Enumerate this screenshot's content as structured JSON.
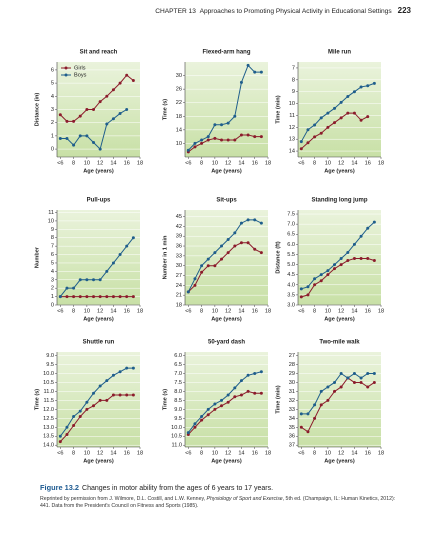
{
  "header": {
    "chapter": "CHAPTER 13",
    "title": "Approaches to Promoting Physical Activity in Educational Settings",
    "page": "223"
  },
  "chart_data": [
    {
      "type": "line",
      "title": "Sit and reach",
      "xlabel": "Age (years)",
      "ylabel": "Distance (in)",
      "legend": "upper left",
      "grid": true,
      "x": [
        6,
        7,
        8,
        9,
        10,
        11,
        12,
        13,
        14,
        15,
        16,
        17
      ],
      "xlim": [
        5.5,
        18
      ],
      "xticks": [
        {
          "value": 6,
          "label": "<6"
        },
        8,
        10,
        12,
        14,
        16,
        18
      ],
      "ylim": [
        -0.6,
        6.6
      ],
      "yticks": [
        0,
        1,
        2,
        3,
        4,
        5,
        6
      ],
      "series": [
        {
          "name": "Girls",
          "color": "#8c1c2c",
          "values": [
            2.6,
            2.1,
            2.1,
            2.5,
            3.0,
            3.0,
            3.6,
            4.0,
            4.5,
            5.0,
            5.6,
            5.2
          ]
        },
        {
          "name": "Boys",
          "color": "#1f5e8c",
          "values": [
            0.8,
            0.8,
            0.3,
            1.0,
            1.0,
            0.5,
            0.0,
            1.9,
            2.3,
            2.7,
            3.0,
            null
          ]
        }
      ]
    },
    {
      "type": "line",
      "title": "Flexed-arm hang",
      "xlabel": "Age (years)",
      "ylabel": "Time (s)",
      "grid": true,
      "x": [
        6,
        7,
        8,
        9,
        10,
        11,
        12,
        13,
        14,
        15,
        16,
        17
      ],
      "xlim": [
        5.5,
        18
      ],
      "xticks": [
        {
          "value": 6,
          "label": "<6"
        },
        8,
        10,
        12,
        14,
        16,
        18
      ],
      "ylim": [
        6,
        34
      ],
      "yticks": [
        10,
        14,
        18,
        22,
        26,
        30
      ],
      "series": [
        {
          "color": "#8c1c2c",
          "values": [
            7.5,
            9,
            10,
            11,
            11.5,
            11,
            11,
            11,
            12.5,
            12.5,
            12,
            12
          ]
        },
        {
          "color": "#1f5e8c",
          "values": [
            8,
            10,
            11,
            12,
            15.5,
            15.5,
            16,
            18,
            28,
            33,
            31,
            31
          ]
        }
      ]
    },
    {
      "type": "line",
      "title": "Mile run",
      "xlabel": "Age (years)",
      "ylabel": "Time (min)",
      "grid": true,
      "x": [
        6,
        7,
        8,
        9,
        10,
        11,
        12,
        13,
        14,
        15,
        16,
        17
      ],
      "xlim": [
        5.5,
        18
      ],
      "xticks": [
        {
          "value": 6,
          "label": "<6"
        },
        8,
        10,
        12,
        14,
        16,
        18
      ],
      "ylim": [
        14.5,
        6.5
      ],
      "yticks": [
        7,
        8,
        9,
        10,
        11,
        12,
        13,
        14
      ],
      "series": [
        {
          "color": "#8c1c2c",
          "values": [
            13.8,
            13.3,
            12.8,
            12.5,
            12.0,
            11.6,
            11.2,
            10.8,
            10.8,
            11.4,
            11.1,
            null
          ]
        },
        {
          "color": "#1f5e8c",
          "values": [
            13.2,
            12.2,
            11.8,
            11.2,
            10.8,
            10.4,
            9.9,
            9.4,
            9.0,
            8.6,
            8.5,
            8.3
          ]
        }
      ]
    },
    {
      "type": "line",
      "title": "Pull-ups",
      "xlabel": "Age (years)",
      "ylabel": "Number",
      "grid": true,
      "x": [
        6,
        7,
        8,
        9,
        10,
        11,
        12,
        13,
        14,
        15,
        16,
        17
      ],
      "xlim": [
        5.5,
        18
      ],
      "xticks": [
        {
          "value": 6,
          "label": "<6"
        },
        8,
        10,
        12,
        14,
        16,
        18
      ],
      "ylim": [
        0,
        11.3
      ],
      "yticks": [
        0,
        1,
        2,
        3,
        4,
        5,
        6,
        7,
        8,
        9,
        10,
        11
      ],
      "series": [
        {
          "color": "#8c1c2c",
          "values": [
            1,
            1,
            1,
            1,
            1,
            1,
            1,
            1,
            1,
            1,
            1,
            1
          ]
        },
        {
          "color": "#1f5e8c",
          "values": [
            1,
            2,
            2,
            3,
            3,
            3,
            3,
            4,
            5,
            6,
            7,
            8
          ]
        }
      ]
    },
    {
      "type": "line",
      "title": "Sit-ups",
      "xlabel": "Age (years)",
      "ylabel": "Number in 1 min",
      "grid": true,
      "x": [
        6,
        7,
        8,
        9,
        10,
        11,
        12,
        13,
        14,
        15,
        16,
        17
      ],
      "xlim": [
        5.5,
        18
      ],
      "xticks": [
        {
          "value": 6,
          "label": "<6"
        },
        8,
        10,
        12,
        14,
        16,
        18
      ],
      "ylim": [
        18,
        47
      ],
      "yticks": [
        18,
        21,
        24,
        27,
        30,
        33,
        36,
        39,
        42,
        45
      ],
      "series": [
        {
          "color": "#8c1c2c",
          "values": [
            22,
            24,
            28,
            30,
            30,
            32,
            34,
            36,
            37,
            37,
            35,
            34
          ]
        },
        {
          "color": "#1f5e8c",
          "values": [
            22,
            26,
            30,
            32,
            34,
            36,
            38,
            40,
            43,
            44,
            44,
            43
          ]
        }
      ]
    },
    {
      "type": "line",
      "title": "Standing long jump",
      "xlabel": "Age (years)",
      "ylabel": "Distance (ft)",
      "grid": true,
      "x": [
        6,
        7,
        8,
        9,
        10,
        11,
        12,
        13,
        14,
        15,
        16,
        17
      ],
      "xlim": [
        5.5,
        18
      ],
      "xticks": [
        {
          "value": 6,
          "label": "<6"
        },
        8,
        10,
        12,
        14,
        16,
        18
      ],
      "ylim": [
        3.0,
        7.7
      ],
      "yticks": [
        {
          "value": 3,
          "label": "3.0"
        },
        3.5,
        {
          "value": 4,
          "label": "4.0"
        },
        4.5,
        {
          "value": 5,
          "label": "5.0"
        },
        5.5,
        {
          "value": 6,
          "label": "6.0"
        },
        6.5,
        {
          "value": 7,
          "label": "7.0"
        },
        7.5
      ],
      "series": [
        {
          "color": "#8c1c2c",
          "values": [
            3.4,
            3.5,
            4.0,
            4.2,
            4.5,
            4.8,
            5.0,
            5.2,
            5.3,
            5.3,
            5.3,
            5.2
          ]
        },
        {
          "color": "#1f5e8c",
          "values": [
            3.8,
            3.9,
            4.3,
            4.5,
            4.7,
            5.0,
            5.3,
            5.6,
            6.0,
            6.4,
            6.8,
            7.1
          ]
        }
      ]
    },
    {
      "type": "line",
      "title": "Shuttle run",
      "xlabel": "Age (years)",
      "ylabel": "Time (s)",
      "grid": true,
      "x": [
        6,
        7,
        8,
        9,
        10,
        11,
        12,
        13,
        14,
        15,
        16,
        17
      ],
      "xlim": [
        5.5,
        18
      ],
      "xticks": [
        {
          "value": 6,
          "label": "<6"
        },
        8,
        10,
        12,
        14,
        16,
        18
      ],
      "ylim": [
        14.1,
        8.8
      ],
      "yticks": [
        {
          "value": 9,
          "label": "9.0"
        },
        9.5,
        {
          "value": 10,
          "label": "10.0"
        },
        10.5,
        {
          "value": 11,
          "label": "11.0"
        },
        11.5,
        {
          "value": 12,
          "label": "12.0"
        },
        12.5,
        {
          "value": 13,
          "label": "13.0"
        },
        13.5,
        {
          "value": 14,
          "label": "14.0"
        }
      ],
      "series": [
        {
          "color": "#8c1c2c",
          "values": [
            13.8,
            13.4,
            12.9,
            12.4,
            12.0,
            11.8,
            11.5,
            11.5,
            11.2,
            11.2,
            11.2,
            11.2
          ]
        },
        {
          "color": "#1f5e8c",
          "values": [
            13.5,
            13.0,
            12.4,
            12.1,
            11.6,
            11.1,
            10.7,
            10.4,
            10.1,
            9.9,
            9.7,
            9.7
          ]
        }
      ]
    },
    {
      "type": "line",
      "title": "50-yard dash",
      "xlabel": "Age (years)",
      "ylabel": "Time (s)",
      "grid": true,
      "x": [
        6,
        7,
        8,
        9,
        10,
        11,
        12,
        13,
        14,
        15,
        16,
        17
      ],
      "xlim": [
        5.5,
        18
      ],
      "xticks": [
        {
          "value": 6,
          "label": "<6"
        },
        8,
        10,
        12,
        14,
        16,
        18
      ],
      "ylim": [
        11.1,
        5.8
      ],
      "yticks": [
        {
          "value": 6,
          "label": "6.0"
        },
        6.5,
        {
          "value": 7,
          "label": "7.0"
        },
        7.5,
        {
          "value": 8,
          "label": "8.0"
        },
        8.5,
        {
          "value": 9,
          "label": "9.0"
        },
        9.5,
        {
          "value": 10,
          "label": "10.0"
        },
        10.5,
        {
          "value": 11,
          "label": "11.0"
        }
      ],
      "series": [
        {
          "color": "#8c1c2c",
          "values": [
            10.4,
            10.0,
            9.6,
            9.3,
            9.0,
            8.8,
            8.6,
            8.3,
            8.2,
            8.0,
            8.1,
            8.1
          ]
        },
        {
          "color": "#1f5e8c",
          "values": [
            10.3,
            9.8,
            9.4,
            9.0,
            8.7,
            8.5,
            8.2,
            7.8,
            7.4,
            7.1,
            7.0,
            6.9
          ]
        }
      ]
    },
    {
      "type": "line",
      "title": "Two-mile walk",
      "xlabel": "Age (years)",
      "ylabel": "Time (min)",
      "grid": true,
      "x": [
        6,
        7,
        8,
        9,
        10,
        11,
        12,
        13,
        14,
        15,
        16,
        17
      ],
      "xlim": [
        5.5,
        18
      ],
      "xticks": [
        {
          "value": 6,
          "label": "<6"
        },
        8,
        10,
        12,
        14,
        16,
        18
      ],
      "ylim": [
        37.2,
        26.6
      ],
      "yticks": [
        27,
        28,
        29,
        30,
        31,
        32,
        33,
        34,
        35,
        36,
        37
      ],
      "series": [
        {
          "color": "#8c1c2c",
          "values": [
            35,
            35.5,
            34,
            32.5,
            32,
            31,
            30.5,
            29.5,
            30,
            30,
            30.5,
            30
          ]
        },
        {
          "color": "#1f5e8c",
          "values": [
            33.5,
            33.5,
            32.5,
            31,
            30.5,
            30,
            29,
            29.5,
            29,
            29.5,
            29,
            29
          ]
        }
      ]
    }
  ],
  "caption": {
    "figure": "Figure 13.2",
    "text": "Changes in motor ability from the ages of 6 years to 17 years.",
    "source_before": "Reprinted by permission from J. Wilmore, D.L. Costill, and L.W. Kenney, ",
    "source_book": "Physiology of Sport and Exercise",
    "source_after": ", 5th ed. (Champaign, IL: Human Kinetics, 2012): 441. Data from the President's Council on Fitness and Sports (1985)."
  }
}
